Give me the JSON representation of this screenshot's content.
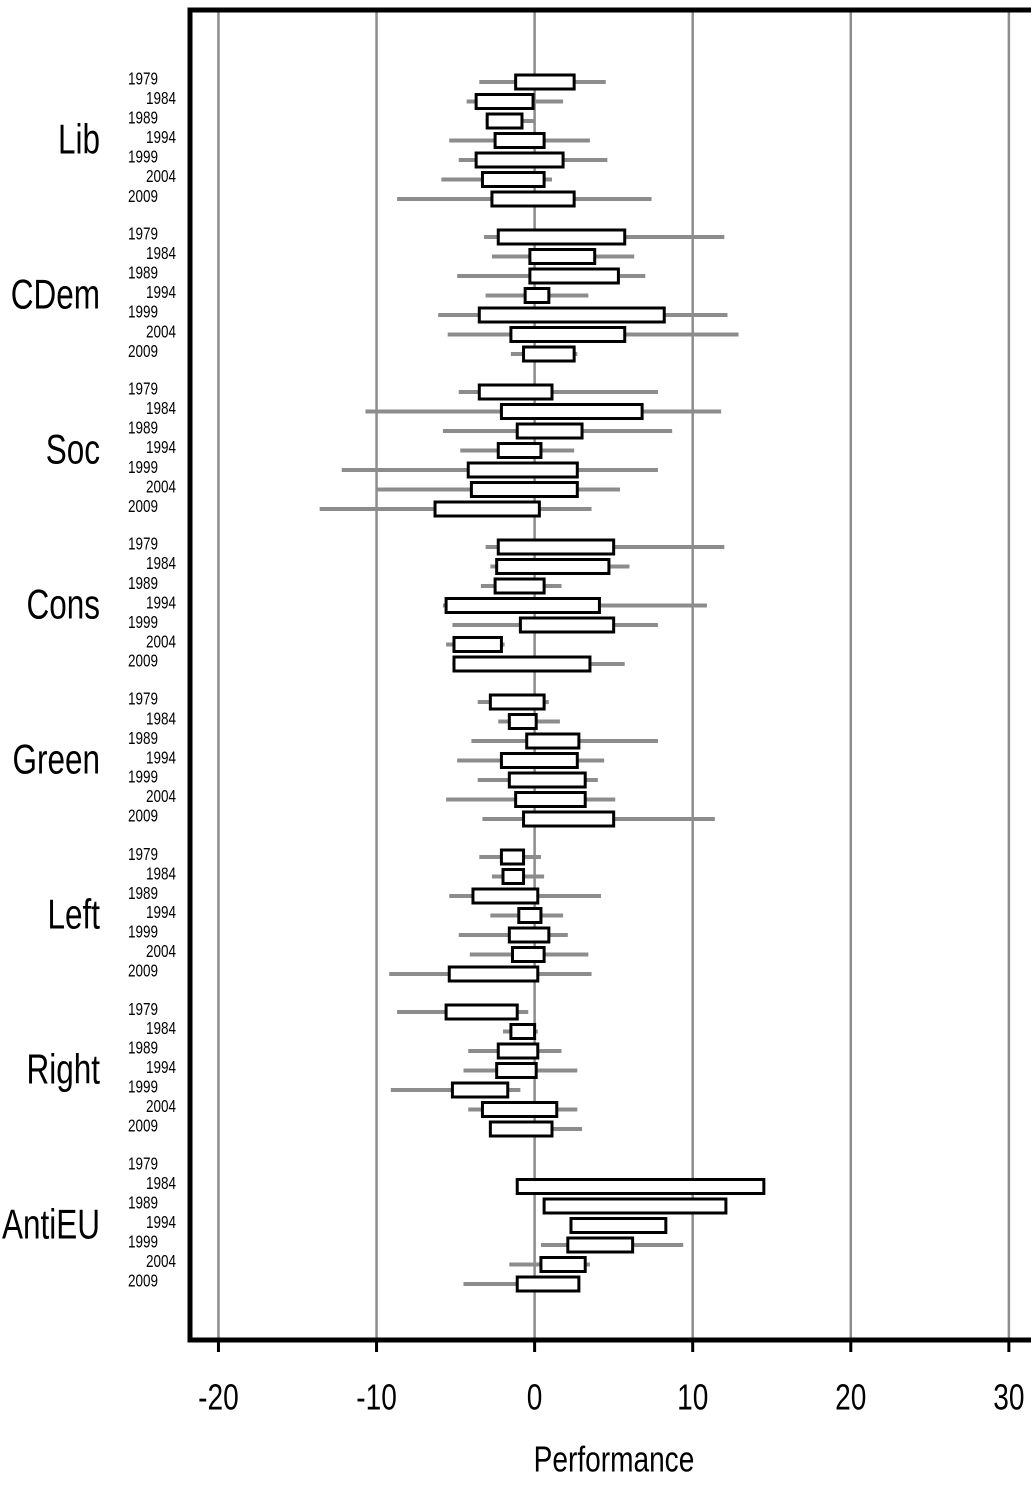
{
  "chart_data": {
    "type": "boxplot",
    "xlabel": "Performance",
    "xlim": [
      -21.8,
      31.4
    ],
    "xticks": [
      -20,
      -10,
      0,
      10,
      20,
      30
    ],
    "grid": true,
    "box_color": "#000000",
    "whisker_color": "#8c8c8c",
    "categories": [
      "1979",
      "1984",
      "1989",
      "1994",
      "1999",
      "2004",
      "2009"
    ],
    "groups": [
      {
        "name": "Lib",
        "boxes": [
          {
            "low": -3.5,
            "q1": -1.2,
            "q3": 2.5,
            "high": 4.5
          },
          {
            "low": -4.3,
            "q1": -3.7,
            "q3": -0.1,
            "high": 1.8
          },
          {
            "low": -3.1,
            "q1": -3.0,
            "q3": -0.8,
            "high": 0
          },
          {
            "low": -5.4,
            "q1": -2.5,
            "q3": 0.6,
            "high": 3.5
          },
          {
            "low": -4.8,
            "q1": -3.7,
            "q3": 1.8,
            "high": 4.6
          },
          {
            "low": -5.9,
            "q1": -3.3,
            "q3": 0.6,
            "high": 1.1
          },
          {
            "low": -8.7,
            "q1": -2.7,
            "q3": 2.5,
            "high": 7.4
          }
        ]
      },
      {
        "name": "CDem",
        "boxes": [
          {
            "low": -3.2,
            "q1": -2.3,
            "q3": 5.7,
            "high": 12.0
          },
          {
            "low": -2.7,
            "q1": -0.3,
            "q3": 3.8,
            "high": 6.3
          },
          {
            "low": -4.9,
            "q1": -0.3,
            "q3": 5.3,
            "high": 7.0
          },
          {
            "low": -3.1,
            "q1": -0.6,
            "q3": 0.9,
            "high": 3.4
          },
          {
            "low": -6.1,
            "q1": -3.5,
            "q3": 8.2,
            "high": 12.2
          },
          {
            "low": -5.5,
            "q1": -1.5,
            "q3": 5.7,
            "high": 12.9
          },
          {
            "low": -1.5,
            "q1": -0.7,
            "q3": 2.5,
            "high": 2.7
          }
        ]
      },
      {
        "name": "Soc",
        "boxes": [
          {
            "low": -4.8,
            "q1": -3.5,
            "q3": 1.1,
            "high": 7.8
          },
          {
            "low": -10.7,
            "q1": -2.1,
            "q3": 6.8,
            "high": 11.8
          },
          {
            "low": -5.8,
            "q1": -1.1,
            "q3": 3.0,
            "high": 8.7
          },
          {
            "low": -4.7,
            "q1": -2.3,
            "q3": 0.4,
            "high": 2.5
          },
          {
            "low": -12.2,
            "q1": -4.2,
            "q3": 2.7,
            "high": 7.8
          },
          {
            "low": -10.0,
            "q1": -4.0,
            "q3": 2.7,
            "high": 5.4
          },
          {
            "low": -13.6,
            "q1": -6.3,
            "q3": 0.3,
            "high": 3.6
          }
        ]
      },
      {
        "name": "Cons",
        "boxes": [
          {
            "low": -3.1,
            "q1": -2.3,
            "q3": 5.0,
            "high": 12.0
          },
          {
            "low": -2.8,
            "q1": -2.4,
            "q3": 4.7,
            "high": 6.0
          },
          {
            "low": -3.4,
            "q1": -2.5,
            "q3": 0.6,
            "high": 1.7
          },
          {
            "low": -5.8,
            "q1": -5.6,
            "q3": 4.1,
            "high": 10.9
          },
          {
            "low": -5.2,
            "q1": -0.9,
            "q3": 5.0,
            "high": 7.8
          },
          {
            "low": -5.6,
            "q1": -5.1,
            "q3": -2.1,
            "high": -1.9
          },
          {
            "low": -5.2,
            "q1": -5.1,
            "q3": 3.5,
            "high": 5.7
          }
        ]
      },
      {
        "name": "Green",
        "boxes": [
          {
            "low": -3.6,
            "q1": -2.8,
            "q3": 0.6,
            "high": 0.9
          },
          {
            "low": -2.3,
            "q1": -1.6,
            "q3": 0.1,
            "high": 1.6
          },
          {
            "low": -4.0,
            "q1": -0.5,
            "q3": 2.8,
            "high": 7.8
          },
          {
            "low": -4.9,
            "q1": -2.1,
            "q3": 2.7,
            "high": 4.4
          },
          {
            "low": -3.6,
            "q1": -1.6,
            "q3": 3.2,
            "high": 4.0
          },
          {
            "low": -5.6,
            "q1": -1.2,
            "q3": 3.2,
            "high": 5.1
          },
          {
            "low": -3.3,
            "q1": -0.7,
            "q3": 5.0,
            "high": 11.4
          }
        ]
      },
      {
        "name": "Left",
        "boxes": [
          {
            "low": -3.5,
            "q1": -2.1,
            "q3": -0.7,
            "high": 0.4
          },
          {
            "low": -2.7,
            "q1": -2.0,
            "q3": -0.7,
            "high": 0.6
          },
          {
            "low": -5.4,
            "q1": -3.9,
            "q3": 0.2,
            "high": 4.2
          },
          {
            "low": -2.8,
            "q1": -1.0,
            "q3": 0.4,
            "high": 1.8
          },
          {
            "low": -4.8,
            "q1": -1.6,
            "q3": 0.9,
            "high": 2.1
          },
          {
            "low": -4.1,
            "q1": -1.4,
            "q3": 0.6,
            "high": 3.4
          },
          {
            "low": -9.2,
            "q1": -5.4,
            "q3": 0.2,
            "high": 3.6
          }
        ]
      },
      {
        "name": "Right",
        "boxes": [
          {
            "low": -8.7,
            "q1": -5.6,
            "q3": -1.1,
            "high": -0.4
          },
          {
            "low": -2.0,
            "q1": -1.5,
            "q3": 0,
            "high": 0.2
          },
          {
            "low": -4.2,
            "q1": -2.3,
            "q3": 0.2,
            "high": 1.7
          },
          {
            "low": -4.5,
            "q1": -2.4,
            "q3": 0.1,
            "high": 2.7
          },
          {
            "low": -9.1,
            "q1": -5.2,
            "q3": -1.7,
            "high": -0.9
          },
          {
            "low": -4.2,
            "q1": -3.3,
            "q3": 1.4,
            "high": 2.7
          },
          {
            "low": -2.8,
            "q1": -2.8,
            "q3": 1.1,
            "high": 3.0
          }
        ]
      },
      {
        "name": "AntiEU",
        "boxes": [
          null,
          {
            "low": -1.1,
            "q1": -1.1,
            "q3": 14.5,
            "high": 14.5
          },
          {
            "low": 0.6,
            "q1": 0.6,
            "q3": 12.1,
            "high": 12.1
          },
          {
            "low": 2.3,
            "q1": 2.3,
            "q3": 8.3,
            "high": 8.3
          },
          {
            "low": 0.4,
            "q1": 2.1,
            "q3": 6.2,
            "high": 9.4
          },
          {
            "low": -1.6,
            "q1": 0.4,
            "q3": 3.2,
            "high": 3.5
          },
          {
            "low": -4.5,
            "q1": -1.1,
            "q3": 2.8,
            "high": 2.8
          }
        ]
      }
    ]
  }
}
